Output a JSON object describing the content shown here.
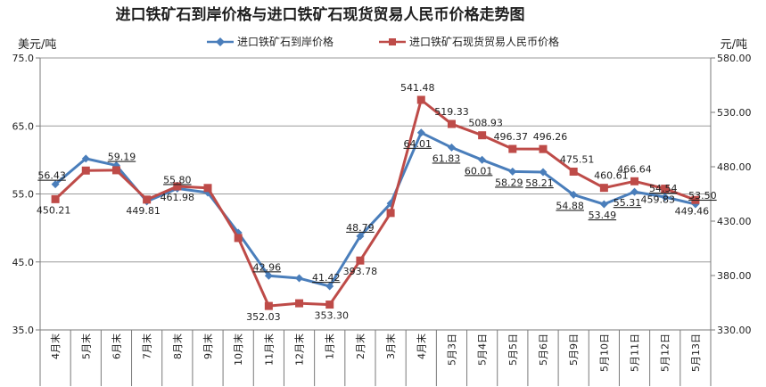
{
  "chart_data": {
    "type": "line",
    "title": "进口铁矿石到岸价格与进口铁矿石现货贸易人民币价格走势图",
    "left_unit": "美元/吨",
    "right_unit": "元/吨",
    "categories": [
      "4月末",
      "5月末",
      "6月末",
      "7月末",
      "8月末",
      "9月末",
      "10月末",
      "11月末",
      "12月末",
      "1月末",
      "2月末",
      "3月末",
      "4月末",
      "5月3日",
      "5月4日",
      "5月5日",
      "5月6日",
      "5月9日",
      "5月10日",
      "5月11日",
      "5月12日",
      "5月13日"
    ],
    "left_axis": {
      "min": 35,
      "max": 75,
      "step": 10,
      "ticks": [
        "35.0",
        "45.0",
        "55.0",
        "65.0",
        "75.0"
      ]
    },
    "right_axis": {
      "min": 330,
      "max": 580,
      "step": 50,
      "ticks": [
        "330.00",
        "380.00",
        "430.00",
        "480.00",
        "530.00",
        "580.00"
      ]
    },
    "grid": true,
    "legend_position": "top",
    "series": [
      {
        "name": "进口铁矿石到岸价格",
        "axis": "left",
        "color": "#4a7ebb",
        "marker": "diamond",
        "values": [
          56.43,
          60.2,
          59.19,
          53.9,
          55.8,
          55.2,
          49.3,
          42.96,
          42.6,
          41.42,
          48.79,
          53.6,
          64.01,
          61.83,
          60.01,
          58.29,
          58.21,
          54.88,
          53.49,
          55.31,
          54.54,
          53.5
        ],
        "labels": [
          "56.43",
          "",
          "59.19",
          "",
          "55.80",
          "",
          "",
          "42.96",
          "",
          "41.42",
          "48.79",
          "",
          "64.01",
          "61.83",
          "60.01",
          "58.29",
          "58.21",
          "54.88",
          "53.49",
          "55.31",
          "54.54",
          "53.50"
        ]
      },
      {
        "name": "进口铁矿石现货贸易人民币价格",
        "axis": "right",
        "color": "#be4b48",
        "marker": "square",
        "values": [
          450.21,
          476.5,
          476.8,
          449.81,
          461.98,
          460.5,
          414.5,
          352.03,
          354.5,
          353.3,
          393.78,
          437.5,
          541.48,
          519.33,
          508.93,
          496.37,
          496.26,
          475.51,
          460.61,
          466.64,
          459.83,
          449.46
        ],
        "labels": [
          "450.21",
          "",
          "",
          "449.81",
          "461.98",
          "",
          "",
          "352.03",
          "",
          "353.30",
          "393.78",
          "",
          "541.48",
          "519.33",
          "508.93",
          "496.37",
          "496.26",
          "475.51",
          "460.61",
          "466.64",
          "459.83",
          "449.46"
        ]
      }
    ]
  }
}
